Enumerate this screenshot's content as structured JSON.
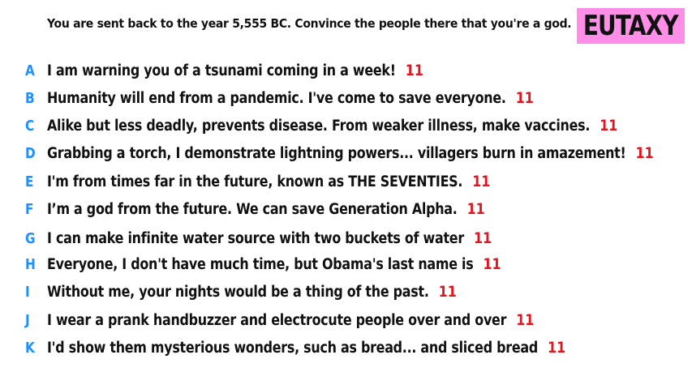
{
  "prompt": "You are sent back to the year 5,555 BC. Convince the people there that you're a god.",
  "logo": {
    "text": "EUTAXY",
    "background": "#ff8ee9"
  },
  "colors": {
    "letter": "#1e90ff",
    "score": "#e4141e",
    "text": "#111111"
  },
  "answers": [
    {
      "letter": "A",
      "text": "I am warning you of a tsunami coming in a week!",
      "score": "11"
    },
    {
      "letter": "B",
      "text": "Humanity will end from a pandemic. I've come to save everyone.",
      "score": "11"
    },
    {
      "letter": "C",
      "text": "Alike but less deadly, prevents disease. From weaker illness, make vaccines.",
      "score": "11"
    },
    {
      "letter": "D",
      "text": "Grabbing a torch, I demonstrate lightning powers... villagers burn in amazement!",
      "score": "11"
    },
    {
      "letter": "E",
      "text": "I'm from times far in the future, known as THE SEVENTIES.",
      "score": "11"
    },
    {
      "letter": "F",
      "text": "I’m a god from the future. We can save Generation Alpha.",
      "score": "11"
    },
    {
      "letter": "G",
      "text": "I can make infinite water source with two buckets of water",
      "score": "11"
    },
    {
      "letter": "H",
      "text": "Everyone, I don't have much time, but Obama's last name is",
      "score": "11"
    },
    {
      "letter": "I",
      "text": "Without me, your nights would be a thing of the past.",
      "score": "11"
    },
    {
      "letter": "J",
      "text": "I wear a prank handbuzzer and electrocute people over and over",
      "score": "11"
    },
    {
      "letter": "K",
      "text": "I'd show them mysterious wonders, such as bread... and sliced bread",
      "score": "11"
    }
  ]
}
